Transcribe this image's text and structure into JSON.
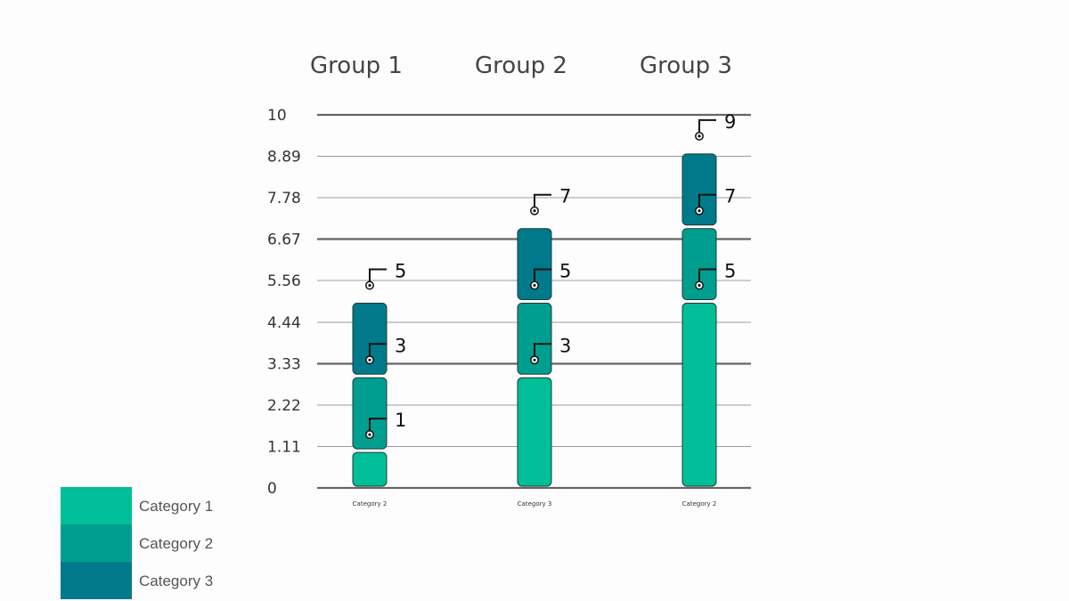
{
  "chart_data": {
    "type": "bar",
    "stacked": true,
    "categories": [
      "Group 1",
      "Group 2",
      "Group 3"
    ],
    "category_labels": [
      "Category 2",
      "Category 3",
      "Category 2"
    ],
    "series": [
      {
        "name": "Category 1",
        "values": [
          1,
          3,
          5
        ],
        "color": "#00bf98"
      },
      {
        "name": "Category 2",
        "values": [
          2,
          2,
          2
        ],
        "color": "#009e8f"
      },
      {
        "name": "Category 3",
        "values": [
          2,
          2,
          2
        ],
        "color": "#007a8a"
      }
    ],
    "callouts": [
      {
        "group": 0,
        "value": 1,
        "label": "1"
      },
      {
        "group": 0,
        "value": 3,
        "label": "3"
      },
      {
        "group": 0,
        "value": 5,
        "label": "5"
      },
      {
        "group": 1,
        "value": 3,
        "label": "3"
      },
      {
        "group": 1,
        "value": 5,
        "label": "5"
      },
      {
        "group": 1,
        "value": 7,
        "label": "7"
      },
      {
        "group": 2,
        "value": 5,
        "label": "5"
      },
      {
        "group": 2,
        "value": 7,
        "label": "7"
      },
      {
        "group": 2,
        "value": 9,
        "label": "9"
      }
    ],
    "y_ticks": [
      {
        "value": 0,
        "label": "0"
      },
      {
        "value": 1.11,
        "label": "1.11"
      },
      {
        "value": 2.22,
        "label": "2.22"
      },
      {
        "value": 3.33,
        "label": "3.33"
      },
      {
        "value": 4.44,
        "label": "4.44"
      },
      {
        "value": 5.56,
        "label": "5.56"
      },
      {
        "value": 6.67,
        "label": "6.67"
      },
      {
        "value": 7.78,
        "label": "7.78"
      },
      {
        "value": 8.89,
        "label": "8.89"
      },
      {
        "value": 10,
        "label": "10"
      }
    ],
    "major_ticks": [
      0,
      3.33,
      6.67,
      10
    ],
    "ylim": [
      0,
      10
    ],
    "grid": true,
    "legend_position": "bottom-left"
  }
}
